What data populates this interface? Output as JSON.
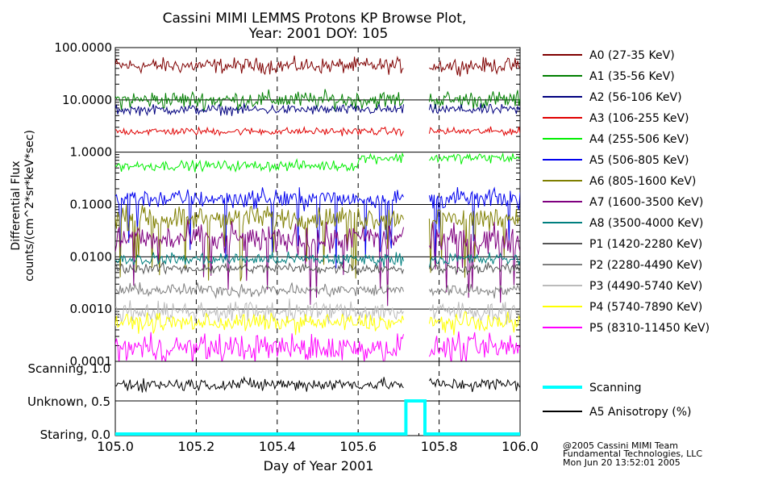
{
  "chart_data": [
    {
      "type": "line",
      "title": "Cassini MIMI LEMMS Protons KP Browse Plot,",
      "subtitle": "Year: 2001 DOY: 105",
      "ylabel_line1": "Differential Flux",
      "ylabel_line2": "counts/(cm^2*sr*keV*sec)",
      "yscale": "log",
      "ylim": [
        0.0001,
        100
      ],
      "xlim": [
        105.0,
        106.0
      ],
      "y_ticks": [
        {
          "value": 100,
          "label": "100.0000"
        },
        {
          "value": 10,
          "label": "10.0000"
        },
        {
          "value": 1,
          "label": "1.0000"
        },
        {
          "value": 0.1,
          "label": "0.1000"
        },
        {
          "value": 0.01,
          "label": "0.0100"
        },
        {
          "value": 0.001,
          "label": "0.0010"
        },
        {
          "value": 0.0001,
          "label": "0.0001"
        }
      ],
      "data_gap": [
        105.715,
        105.775
      ],
      "legend_position": "right",
      "series": [
        {
          "name": "A0 (27-35 KeV)",
          "color": "#7f0000",
          "level": 45,
          "noise": 0.12
        },
        {
          "name": "A1 (35-56 KeV)",
          "color": "#007f00",
          "level": 10,
          "noise": 0.14
        },
        {
          "name": "A2 (56-106 KeV)",
          "color": "#00007f",
          "level": 6.5,
          "noise": 0.08
        },
        {
          "name": "A3 (106-255 KeV)",
          "color": "#e00000",
          "level": 2.5,
          "noise": 0.06
        },
        {
          "name": "A4 (255-506 KeV)",
          "color": "#00ee00",
          "level": 0.55,
          "noise": 0.08
        },
        {
          "name": "A5 (506-805 KeV)",
          "color": "#0000ee",
          "level": 0.13,
          "noise": 0.15
        },
        {
          "name": "A6 (805-1600 KeV)",
          "color": "#7f7f00",
          "level": 0.055,
          "noise": 0.18
        },
        {
          "name": "A7 (1600-3500 KeV)",
          "color": "#7f007f",
          "level": 0.022,
          "noise": 0.22
        },
        {
          "name": "A8 (3500-4000 KeV)",
          "color": "#007f7f",
          "level": 0.009,
          "noise": 0.1
        },
        {
          "name": "P1 (1420-2280 KeV)",
          "color": "#555555",
          "level": 0.006,
          "noise": 0.08
        },
        {
          "name": "P2 (2280-4490 KeV)",
          "color": "#7f7f7f",
          "level": 0.0023,
          "noise": 0.1
        },
        {
          "name": "P3 (4490-5740 KeV)",
          "color": "#bbbbbb",
          "level": 0.0009,
          "noise": 0.16
        },
        {
          "name": "P4 (5740-7890 KeV)",
          "color": "#ffff00",
          "level": 0.00055,
          "noise": 0.14
        },
        {
          "name": "P5 (8310-11450 KeV)",
          "color": "#ff00ff",
          "level": 0.00018,
          "noise": 0.22
        }
      ]
    },
    {
      "type": "line",
      "ylim": [
        0,
        1
      ],
      "xlim": [
        105.0,
        106.0
      ],
      "xlabel": "Day of Year 2001",
      "x_ticks": [
        "105.0",
        "105.2",
        "105.4",
        "105.6",
        "105.8",
        "106.0"
      ],
      "x_tick_values": [
        105.0,
        105.2,
        105.4,
        105.6,
        105.8,
        106.0
      ],
      "y_ticks": [
        {
          "value": 1.0,
          "label": "Scanning, 1.0"
        },
        {
          "value": 0.5,
          "label": "Unknown, 0.5"
        },
        {
          "value": 0.0,
          "label": "Staring, 0.0"
        }
      ],
      "series": [
        {
          "name": "Scanning",
          "color": "#00ffff",
          "x": [
            105.0,
            105.718,
            105.718,
            105.765,
            105.765,
            106.0
          ],
          "y": [
            0.0,
            0.0,
            0.5,
            0.5,
            0.0,
            0.0
          ]
        },
        {
          "name": "A5 Anisotropy (%)",
          "color": "#000000",
          "level": 0.75,
          "noise": 0.08
        }
      ]
    }
  ],
  "footer": {
    "line1": "@2005 Cassini MIMI Team",
    "line2": "Fundamental Technologies, LLC",
    "line3": "Mon Jun 20 13:52:01 2005"
  }
}
